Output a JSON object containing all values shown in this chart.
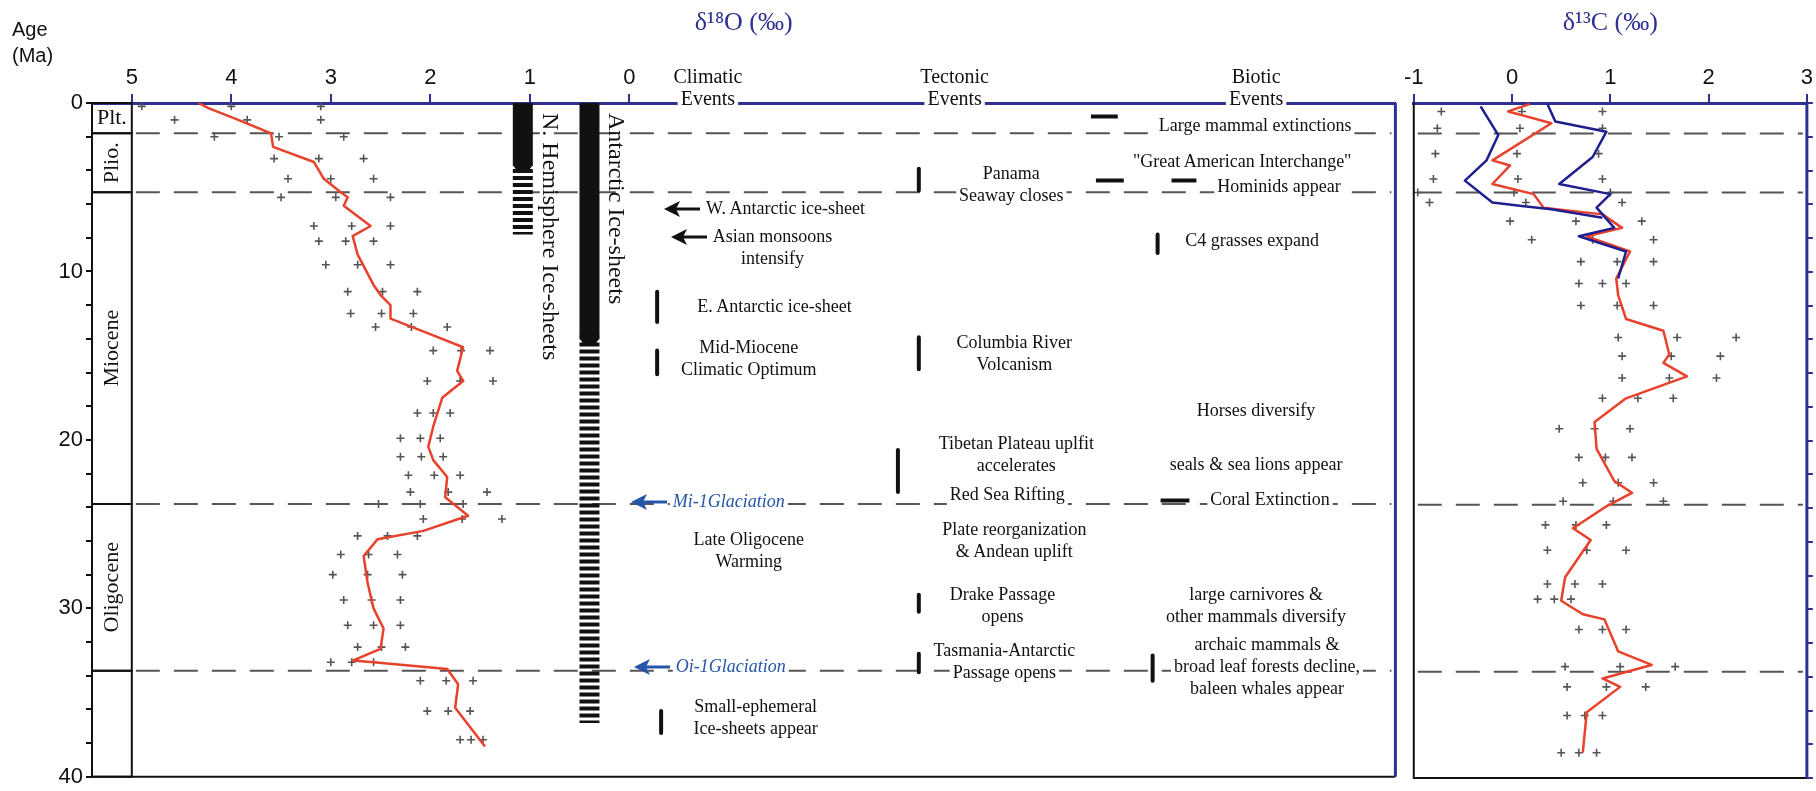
{
  "chart_data": [
    {
      "type": "line",
      "xlabel": "δ¹⁸O (‰)",
      "ylabel": "Age (Ma)",
      "xlim": [
        5.4,
        -7.7
      ],
      "xticks": [
        5,
        4,
        3,
        2,
        1,
        0
      ],
      "ylim": [
        40,
        0
      ],
      "yticks": [
        0,
        {
          "value": 2,
          "label": null
        },
        {
          "value": 4,
          "label": null
        },
        {
          "value": 6,
          "label": null
        },
        {
          "value": 8,
          "label": null
        },
        10,
        {
          "value": 12,
          "label": null
        },
        {
          "value": 14,
          "label": null
        },
        {
          "value": 16,
          "label": null
        },
        {
          "value": 18,
          "label": null
        },
        20,
        {
          "value": 22,
          "label": null
        },
        {
          "value": 24,
          "label": null
        },
        {
          "value": 26,
          "label": null
        },
        {
          "value": 28,
          "label": null
        },
        30,
        {
          "value": 32,
          "label": null
        },
        {
          "value": 34,
          "label": null
        },
        {
          "value": 36,
          "label": null
        },
        {
          "value": 38,
          "label": null
        },
        40
      ],
      "series": [
        {
          "type": "scatter",
          "marker": "cross",
          "color": "#555555",
          "x": [
            4.9,
            4.57,
            4.17,
            3.57,
            3.43,
            3.5,
            3.17,
            3.12,
            3.05,
            2.83,
            2.8,
            2.55,
            1.97,
            2.03,
            2.13,
            2.3,
            2.3,
            2.22,
            2.2,
            2.52,
            2.07,
            2.73,
            2.9,
            2.98,
            2.87,
            2.83,
            2.73,
            3.0,
            2.1,
            2.03,
            1.7,
            4.0,
            3.84,
            3.52,
            3.12,
            3.0,
            2.95,
            2.79,
            2.85,
            2.73,
            2.48,
            2.49,
            2.19,
            1.69,
            1.7,
            1.97,
            2.1,
            2.09,
            1.96,
            1.82,
            2.1,
            1.68,
            2.43,
            2.62,
            2.63,
            2.59,
            2.57,
            2.49,
            2.79,
            1.84,
            1.82,
            1.59,
            3.1,
            3.1,
            2.87,
            2.67,
            2.57,
            2.4,
            2.4,
            2.57,
            2.4,
            2.13,
            2.17,
            1.83,
            1.4,
            1.37,
            1.8,
            1.9,
            1.87,
            1.7,
            1.43,
            1.67,
            1.28,
            2.13,
            2.33,
            2.28,
            2.3,
            2.3,
            2.25,
            2.57,
            1.57,
            1.6,
            1.47
          ],
          "values": [
            0.2,
            1,
            2,
            3.3,
            4.5,
            5.6,
            7.3,
            8.2,
            9.6,
            11.2,
            12.5,
            13.3,
            14.7,
            16.5,
            18.4,
            19.9,
            21,
            22.1,
            23.1,
            23.8,
            24.7,
            25.7,
            26.8,
            28,
            29.5,
            31,
            32.3,
            33.2,
            34.3,
            36.1,
            37.8,
            0.2,
            1,
            2,
            3.3,
            4.5,
            5.6,
            7.3,
            8.2,
            9.6,
            11.2,
            12.5,
            13.3,
            14.7,
            16.5,
            18.4,
            19.9,
            21,
            22.1,
            23.1,
            23.8,
            24.7,
            25.7,
            26.8,
            28,
            29.5,
            31,
            32.3,
            33.2,
            34.3,
            36.1,
            37.8,
            0.2,
            1,
            2,
            3.3,
            4.5,
            5.6,
            7.3,
            8.2,
            9.6,
            11.2,
            12.5,
            13.3,
            14.7,
            16.5,
            18.4,
            19.9,
            21,
            22.1,
            23.1,
            23.8,
            24.7,
            25.7,
            26.8,
            28,
            29.5,
            31,
            32.3,
            33.2,
            34.3,
            36.1,
            37.8
          ]
        },
        {
          "color": "#e8412c",
          "x": [
            4.33,
            4.23,
            3.93,
            3.6,
            3.58,
            3.17,
            3.07,
            2.9,
            2.83,
            2.87,
            2.6,
            2.78,
            2.73,
            2.57,
            2.5,
            2.4,
            2.4,
            1.97,
            1.67,
            1.73,
            1.67,
            1.88,
            1.97,
            2.02,
            1.97,
            1.83,
            1.85,
            1.62,
            2.07,
            2.53,
            2.67,
            2.63,
            2.57,
            2.47,
            2.5,
            2.78,
            2.57,
            1.83,
            1.72,
            1.75,
            1.45
          ],
          "values": [
            0,
            0.3,
            1.0,
            1.8,
            2.6,
            3.5,
            4.5,
            5.3,
            5.6,
            6.1,
            7.3,
            7.9,
            9.0,
            10.8,
            11.4,
            12.0,
            12.8,
            13.8,
            14.5,
            15.9,
            16.5,
            17.5,
            19.2,
            20.4,
            21.2,
            22.2,
            23.4,
            24.5,
            25.4,
            25.9,
            26.9,
            28.5,
            30.0,
            31.2,
            32.4,
            33.1,
            33.2,
            33.6,
            34.5,
            35.9,
            38.2
          ]
        },
        {
          "name": "N. Hemisphere Ice-sheets",
          "color": "#111111",
          "x": [
            1.07,
            1.07
          ],
          "values": [
            0,
            3.5
          ]
        },
        {
          "color": "#111111",
          "line_style": "dashed",
          "x": [
            1.07,
            1.07
          ],
          "values": [
            3.5,
            7.8
          ]
        },
        {
          "name": "Antarctic Ice-sheets",
          "color": "#111111",
          "x": [
            0.4,
            0.4
          ],
          "values": [
            0,
            13.8
          ]
        },
        {
          "color": "#111111",
          "line_style": "dashed",
          "x": [
            0.4,
            0.4
          ],
          "values": [
            13.8,
            36.8
          ]
        },
        {
          "color": "#111111",
          "x": [
            -0.28,
            -0.28,
            null,
            -0.28,
            -0.28,
            null,
            -0.32,
            -0.32,
            null,
            -2.91,
            -2.91,
            null,
            -2.91,
            -2.91,
            null,
            -2.7,
            -2.7,
            null,
            -2.91,
            -2.91,
            null,
            -2.91,
            -2.91,
            null,
            -5.31,
            -5.31,
            null,
            -5.26,
            -5.26,
            null,
            -4.64,
            -4.91,
            null,
            -4.69,
            -4.97,
            null,
            -5.45,
            -5.7,
            null,
            -5.34,
            -5.63
          ],
          "values": [
            11.2,
            13.0,
            null,
            14.7,
            16.1,
            null,
            36.1,
            37.4,
            null,
            3.9,
            5.2,
            null,
            13.9,
            15.8,
            null,
            20.6,
            23.1,
            null,
            29.2,
            30.2,
            null,
            32.7,
            33.8,
            null,
            7.8,
            8.9,
            null,
            32.8,
            34.3,
            null,
            0.8,
            0.8,
            null,
            4.6,
            4.6,
            null,
            4.6,
            4.6,
            null,
            23.6,
            23.6
          ]
        }
      ],
      "ref_lines": [
        {
          "axis": "y",
          "value": 1.8,
          "color": "#555555",
          "line_style": "dashed"
        },
        {
          "axis": "y",
          "value": 5.3,
          "color": "#555555",
          "line_style": "dashed"
        },
        {
          "axis": "y",
          "value": 23.8,
          "color": "#555555",
          "line_style": "dashed"
        },
        {
          "axis": "y",
          "value": 33.7,
          "color": "#555555",
          "line_style": "dashed"
        }
      ],
      "annotations": [
        "Climatic\nEvents",
        "Tectonic\nEvents",
        "Biotic\nEvents",
        "W. Antarctic ice-sheet",
        "Asian monsoons\nintensify",
        "E. Antarctic ice-sheet",
        "Mid-Miocene\nClimatic Optimum",
        "Mi-1Glaciation",
        "Late Oligocene\nWarming",
        "Oi-1Glaciation",
        "Small-ephemeral\nIce-sheets appear",
        "Panama\nSeaway closes",
        "Columbia River\nVolcanism",
        "Tibetan Plateau uplfit\naccelerates",
        "Red Sea Rifting",
        "Plate reorganization\n& Andean uplift",
        "Drake Passage\nopens",
        "Tasmania-Antarctic\nPassage opens",
        "Large mammal extinctions",
        "\"Great American Interchange\"",
        "Hominids appear",
        "C4 grasses expand",
        "Horses diversify",
        "seals & sea lions appear",
        "Coral Extinction",
        "large carnivores &\nother mammals diversify",
        "archaic mammals &\nbroad leaf forests decline,\nbaleen whales appear",
        "Plt.",
        "Plio.",
        "Miocene",
        "Oligocene"
      ]
    },
    {
      "type": "line",
      "xlabel": "δ¹³C (‰)",
      "tick_labels": "x",
      "xlim": [
        -1,
        3
      ],
      "xticks": [
        -1,
        0,
        1,
        2,
        3
      ],
      "ylim": [
        40,
        0
      ],
      "yticks": [
        0,
        {
          "value": 2,
          "label": null
        },
        {
          "value": 4,
          "label": null
        },
        {
          "value": 6,
          "label": null
        },
        {
          "value": 8,
          "label": null
        },
        10,
        {
          "value": 12,
          "label": null
        },
        {
          "value": 14,
          "label": null
        },
        {
          "value": 16,
          "label": null
        },
        {
          "value": 18,
          "label": null
        },
        20,
        {
          "value": 22,
          "label": null
        },
        {
          "value": 24,
          "label": null
        },
        {
          "value": 26,
          "label": null
        },
        {
          "value": 28,
          "label": null
        },
        30,
        {
          "value": 32,
          "label": null
        },
        {
          "value": 34,
          "label": null
        },
        {
          "value": 36,
          "label": null
        },
        {
          "value": 38,
          "label": null
        },
        40
      ],
      "series": [
        {
          "type": "scatter",
          "marker": "cross",
          "color": "#555555",
          "x": [
            -0.72,
            -0.76,
            -0.78,
            -0.8,
            -0.96,
            -0.84,
            -0.02,
            0.2,
            0.7,
            0.68,
            0.7,
            1.08,
            1.12,
            1.12,
            0.92,
            0.48,
            0.68,
            0.72,
            0.52,
            0.34,
            0.36,
            0.36,
            0.26,
            0.68,
            0.54,
            0.56,
            0.56,
            0.5,
            0.1,
            0.08,
            0.05,
            0.06,
            0.02,
            0.14,
            0.65,
            0.82,
            1.07,
            0.92,
            1.07,
            1.68,
            1.62,
            1.6,
            1.28,
            0.84,
            0.95,
            1.08,
            1.03,
            0.65,
            0.76,
            0.64,
            0.43,
            0.92,
            1.1,
            0.96,
            0.74,
            0.68,
            0.92,
            0.92,
            0.88,
            0.92,
            1.0,
            1.12,
            1.32,
            1.44,
            1.44,
            1.16,
            1.44,
            2.28,
            2.12,
            2.08,
            1.64,
            1.2,
            1.22,
            1.44,
            1.54,
            0.96,
            1.16,
            0.92,
            0.6,
            1.16,
            1.66,
            1.36,
            0.92,
            0.86
          ],
          "values": [
            0.5,
            1.5,
            3,
            4.5,
            5.3,
            5.9,
            7,
            8.1,
            9.4,
            10.7,
            12,
            13.9,
            15,
            16.3,
            17.5,
            19.3,
            21,
            22.5,
            23.6,
            25,
            26.5,
            28.5,
            29.4,
            31.2,
            33.4,
            34.6,
            36.3,
            38.5,
            0.5,
            1.5,
            3,
            4.5,
            5.3,
            5.9,
            7,
            8.1,
            9.4,
            10.7,
            12,
            13.9,
            15,
            16.3,
            17.5,
            19.3,
            21,
            22.5,
            23.6,
            25,
            26.5,
            28.5,
            29.4,
            31.2,
            33.4,
            34.6,
            36.3,
            38.5,
            0.5,
            1.5,
            3,
            4.5,
            5.3,
            5.9,
            7,
            8.1,
            9.4,
            10.7,
            12,
            13.9,
            15,
            16.3,
            17.5,
            19.3,
            21,
            22.5,
            23.6,
            25,
            26.5,
            28.5,
            29.4,
            31.2,
            33.4,
            34.6,
            36.3,
            38.5
          ]
        },
        {
          "color": "#e8412c",
          "x": [
            0.18,
            -0.04,
            0.4,
            -0.2,
            -0.02,
            -0.2,
            0.22,
            0.32,
            0.92,
            1.12,
            0.76,
            1.2,
            1.06,
            1.08,
            1.16,
            1.54,
            1.6,
            1.54,
            1.78,
            1.16,
            0.84,
            0.86,
            1.04,
            1.22,
            0.96,
            0.62,
            0.8,
            0.54,
            0.5,
            0.72,
            0.94,
            1.08,
            1.42,
            0.92,
            1.1,
            0.76,
            0.72
          ],
          "values": [
            0.06,
            0.5,
            1.2,
            3.4,
            3.7,
            4.8,
            5.4,
            6.2,
            6.6,
            7.4,
            7.9,
            8.8,
            10.4,
            11.4,
            12.8,
            13.5,
            14.9,
            15.4,
            16.2,
            17.5,
            18.9,
            20.5,
            22.4,
            23.1,
            23.9,
            25.2,
            25.9,
            28.1,
            29.5,
            30.3,
            30.6,
            32.5,
            33.3,
            34.1,
            34.6,
            36.1,
            38.5
          ]
        },
        {
          "color": "#1f1f8f",
          "x": [
            0.36,
            0.44,
            0.96,
            0.82,
            0.48,
            1.0,
            0.86,
            1.04,
            0.68,
            1.16,
            1.08
          ],
          "values": [
            0.06,
            1.1,
            1.7,
            3.2,
            4.8,
            5.4,
            6.2,
            7.4,
            7.9,
            8.8,
            10.4
          ]
        },
        {
          "color": "#1f1f8f",
          "x": [
            -0.32,
            -0.14,
            -0.26,
            -0.48,
            -0.2,
            0.4,
            0.92
          ],
          "values": [
            0.2,
            1.9,
            3.4,
            4.6,
            5.9,
            6.3,
            6.8
          ]
        }
      ],
      "ref_lines": [
        {
          "axis": "y",
          "value": 1.8,
          "color": "#555555",
          "line_style": "dashed"
        },
        {
          "axis": "y",
          "value": 5.3,
          "color": "#555555",
          "line_style": "dashed"
        },
        {
          "axis": "y",
          "value": 23.8,
          "color": "#555555",
          "line_style": "dashed"
        },
        {
          "axis": "y",
          "value": 33.7,
          "color": "#555555",
          "line_style": "dashed"
        }
      ]
    }
  ]
}
